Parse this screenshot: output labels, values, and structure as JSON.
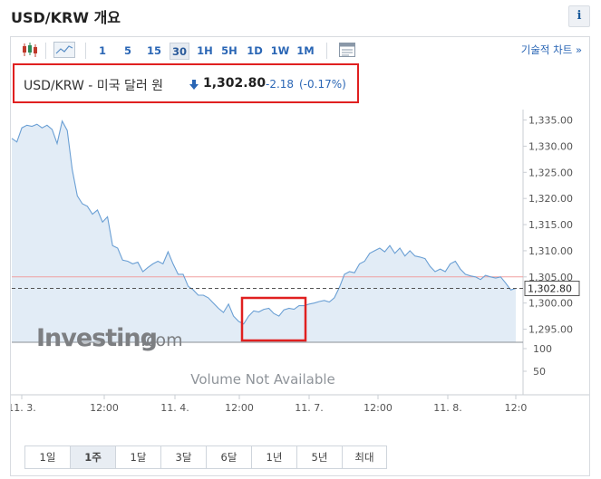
{
  "page": {
    "title": "USD/KRW 개요",
    "info_label": "i"
  },
  "toolbar": {
    "intervals": [
      "1",
      "5",
      "15",
      "30",
      "1H",
      "5H",
      "1D",
      "1W",
      "1M"
    ],
    "active_interval": "30",
    "advanced_link": "기술적 차트 »"
  },
  "quote": {
    "pair": "USD/KRW - 미국 달러 원",
    "price": "1,302.80",
    "change": "-2.18",
    "change_pct": "(-0.17%)",
    "direction": "down"
  },
  "chart_data": {
    "type": "area",
    "y_axis": {
      "ticks": [
        "1,335.00",
        "1,330.00",
        "1,325.00",
        "1,320.00",
        "1,315.00",
        "1,310.00",
        "1,305.00",
        "1,300.00",
        "1,295.00"
      ],
      "ylim": [
        1292.5,
        1337
      ]
    },
    "volume_axis": {
      "ticks": [
        "100",
        "50"
      ]
    },
    "x_axis": {
      "ticks": [
        "11. 3.",
        "12:00",
        "11. 4.",
        "12:00",
        "11. 7.",
        "12:00",
        "11. 8.",
        "12:0"
      ]
    },
    "last_price_label": "1,302.80",
    "last_price": 1302.8,
    "previous_close": 1305.0,
    "volume_message": "Volume Not Available",
    "watermark": "Investing.com",
    "series": [
      {
        "x": [
          0,
          2,
          4,
          6,
          8,
          10,
          12,
          14,
          16,
          18,
          20,
          22,
          24,
          26,
          28,
          30,
          32,
          34,
          36,
          38,
          40,
          42,
          44,
          46,
          48,
          50,
          52,
          54,
          56,
          58,
          60,
          62,
          64,
          66,
          68,
          70,
          72,
          74,
          76,
          78,
          80,
          82,
          84,
          86,
          88,
          90,
          92,
          94,
          96,
          98,
          100,
          102,
          104,
          106,
          108,
          110,
          112,
          114,
          116,
          118,
          120,
          122,
          124,
          126,
          128,
          130,
          132,
          134,
          136,
          138,
          140,
          142,
          144,
          146,
          148,
          150,
          152,
          154,
          156,
          158,
          160,
          162,
          164,
          166,
          168,
          170,
          172,
          174,
          176,
          178,
          180,
          182,
          184,
          186,
          188,
          190,
          192,
          194,
          196,
          198,
          200
        ],
        "values": [
          1331.5,
          1330.8,
          1333.5,
          1334.0,
          1333.8,
          1334.2,
          1333.5,
          1334.0,
          1333.2,
          1330.5,
          1334.8,
          1333.0,
          1325.5,
          1320.5,
          1319.0,
          1318.5,
          1317.0,
          1317.8,
          1315.5,
          1316.5,
          1311.0,
          1310.5,
          1308.2,
          1308.0,
          1307.5,
          1307.8,
          1306.0,
          1306.8,
          1307.5,
          1308.0,
          1307.5,
          1309.8,
          1307.5,
          1305.5,
          1305.5,
          1303.2,
          1302.5,
          1301.5,
          1301.5,
          1301.0,
          1300.0,
          1299.0,
          1298.2,
          1299.8,
          1297.5,
          1296.5,
          1296.0,
          1297.5,
          1298.5,
          1298.3,
          1298.8,
          1299.0,
          1298.0,
          1297.5,
          1298.7,
          1299.0,
          1298.8,
          1299.5,
          1299.5,
          1299.8,
          1300.0,
          1300.3,
          1300.5,
          1300.2,
          1301.0,
          1303.0,
          1305.5,
          1306.0,
          1305.8,
          1307.5,
          1308.0,
          1309.5,
          1310.0,
          1310.5,
          1309.8,
          1311.0,
          1309.5,
          1310.5,
          1309.0,
          1310.0,
          1309.0,
          1308.8,
          1308.5,
          1307.0,
          1306.0,
          1306.5,
          1306.0,
          1307.5,
          1308.0,
          1306.5,
          1305.5,
          1305.2,
          1305.0,
          1304.5,
          1305.3,
          1305.0,
          1304.8,
          1305.0,
          1303.8,
          1302.5,
          1302.8
        ]
      }
    ]
  },
  "time_ranges": {
    "items": [
      "1일",
      "1주",
      "1달",
      "3달",
      "6달",
      "1년",
      "5년",
      "최대"
    ],
    "active": "1주"
  }
}
